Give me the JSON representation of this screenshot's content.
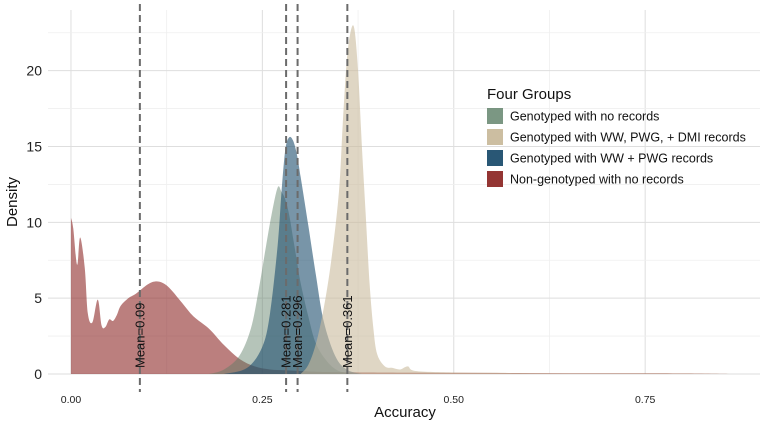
{
  "chart_data": {
    "type": "area",
    "title": "",
    "xlabel": "Accuracy",
    "ylabel": "Density",
    "xlim": [
      -0.03,
      0.9
    ],
    "ylim": [
      0,
      24
    ],
    "x_ticks": [
      0,
      0.25,
      0.5,
      0.75
    ],
    "x_tick_labels": [
      "0.00",
      "0.25",
      "0.50",
      "0.75"
    ],
    "y_ticks": [
      0,
      5,
      10,
      15,
      20
    ],
    "y_tick_labels": [
      "0",
      "5",
      "10",
      "15",
      "20"
    ],
    "grid": true,
    "legend": {
      "title": "Four Groups",
      "placement": "right"
    },
    "series": [
      {
        "name": "Non-genotyped with no records",
        "color": "#8e2a28",
        "opacity": 0.6,
        "x": [
          0.0,
          0.003,
          0.008,
          0.012,
          0.018,
          0.022,
          0.028,
          0.035,
          0.04,
          0.045,
          0.05,
          0.055,
          0.06,
          0.065,
          0.075,
          0.085,
          0.1,
          0.11,
          0.12,
          0.13,
          0.145,
          0.16,
          0.18,
          0.2,
          0.22,
          0.24,
          0.26,
          0.28,
          0.3,
          0.32,
          0.35,
          0.4,
          0.5,
          0.6,
          0.7,
          0.8,
          0.86
        ],
        "y": [
          10.3,
          9.6,
          7.2,
          9.0,
          7.0,
          4.0,
          3.4,
          4.9,
          3.2,
          3.1,
          3.6,
          3.5,
          3.9,
          4.5,
          5.0,
          5.3,
          5.9,
          6.1,
          6.0,
          5.6,
          4.7,
          3.8,
          3.0,
          1.9,
          1.0,
          0.5,
          0.3,
          0.25,
          0.2,
          0.15,
          0.12,
          0.1,
          0.08,
          0.06,
          0.05,
          0.04,
          0.0
        ]
      },
      {
        "name": "Genotyped with no records",
        "color": "#5a7d64",
        "opacity": 0.45,
        "x": [
          0.18,
          0.2,
          0.22,
          0.235,
          0.245,
          0.255,
          0.262,
          0.27,
          0.275,
          0.28,
          0.285,
          0.29,
          0.295,
          0.3,
          0.31,
          0.32,
          0.335,
          0.35,
          0.37
        ],
        "y": [
          0.0,
          0.3,
          1.2,
          3.0,
          5.5,
          8.5,
          10.5,
          12.3,
          12.0,
          11.5,
          10.5,
          9.0,
          7.5,
          6.0,
          3.8,
          2.0,
          0.8,
          0.2,
          0.0
        ]
      },
      {
        "name": "Genotyped with WW + PWG records",
        "color": "#1e4e6e",
        "opacity": 0.6,
        "x": [
          0.2,
          0.23,
          0.25,
          0.26,
          0.27,
          0.275,
          0.28,
          0.285,
          0.29,
          0.295,
          0.3,
          0.31,
          0.32,
          0.33,
          0.345,
          0.36,
          0.38
        ],
        "y": [
          0.0,
          0.4,
          1.8,
          4.0,
          8.5,
          12.0,
          14.8,
          15.6,
          15.4,
          14.5,
          13.0,
          9.8,
          6.5,
          3.5,
          1.2,
          0.3,
          0.0
        ]
      },
      {
        "name": "Genotyped with WW, PWG, + DMI records",
        "color": "#c9bb9c",
        "opacity": 0.6,
        "x": [
          0.3,
          0.31,
          0.32,
          0.33,
          0.34,
          0.35,
          0.355,
          0.36,
          0.365,
          0.37,
          0.375,
          0.38,
          0.385,
          0.39,
          0.395,
          0.4,
          0.41,
          0.42,
          0.43,
          0.44,
          0.45,
          0.5,
          0.55,
          0.6,
          0.7,
          0.8,
          0.86
        ],
        "y": [
          0.0,
          0.6,
          2.0,
          4.3,
          7.5,
          12.0,
          16.5,
          20.5,
          22.5,
          22.8,
          20.0,
          15.0,
          10.5,
          6.0,
          3.0,
          1.3,
          0.5,
          0.4,
          0.3,
          0.5,
          0.2,
          0.1,
          0.08,
          0.05,
          0.04,
          0.03,
          0.0
        ]
      }
    ],
    "legend_order": [
      "Genotyped with no records",
      "Genotyped with WW, PWG, + DMI records",
      "Genotyped with WW + PWG records",
      "Non-genotyped with no records"
    ],
    "mean_lines": [
      {
        "x": 0.09,
        "label": "Mean=0.09"
      },
      {
        "x": 0.281,
        "label": "Mean=0.281"
      },
      {
        "x": 0.296,
        "label": "Mean=0.296"
      },
      {
        "x": 0.361,
        "label": "Mean=0.361"
      }
    ]
  }
}
